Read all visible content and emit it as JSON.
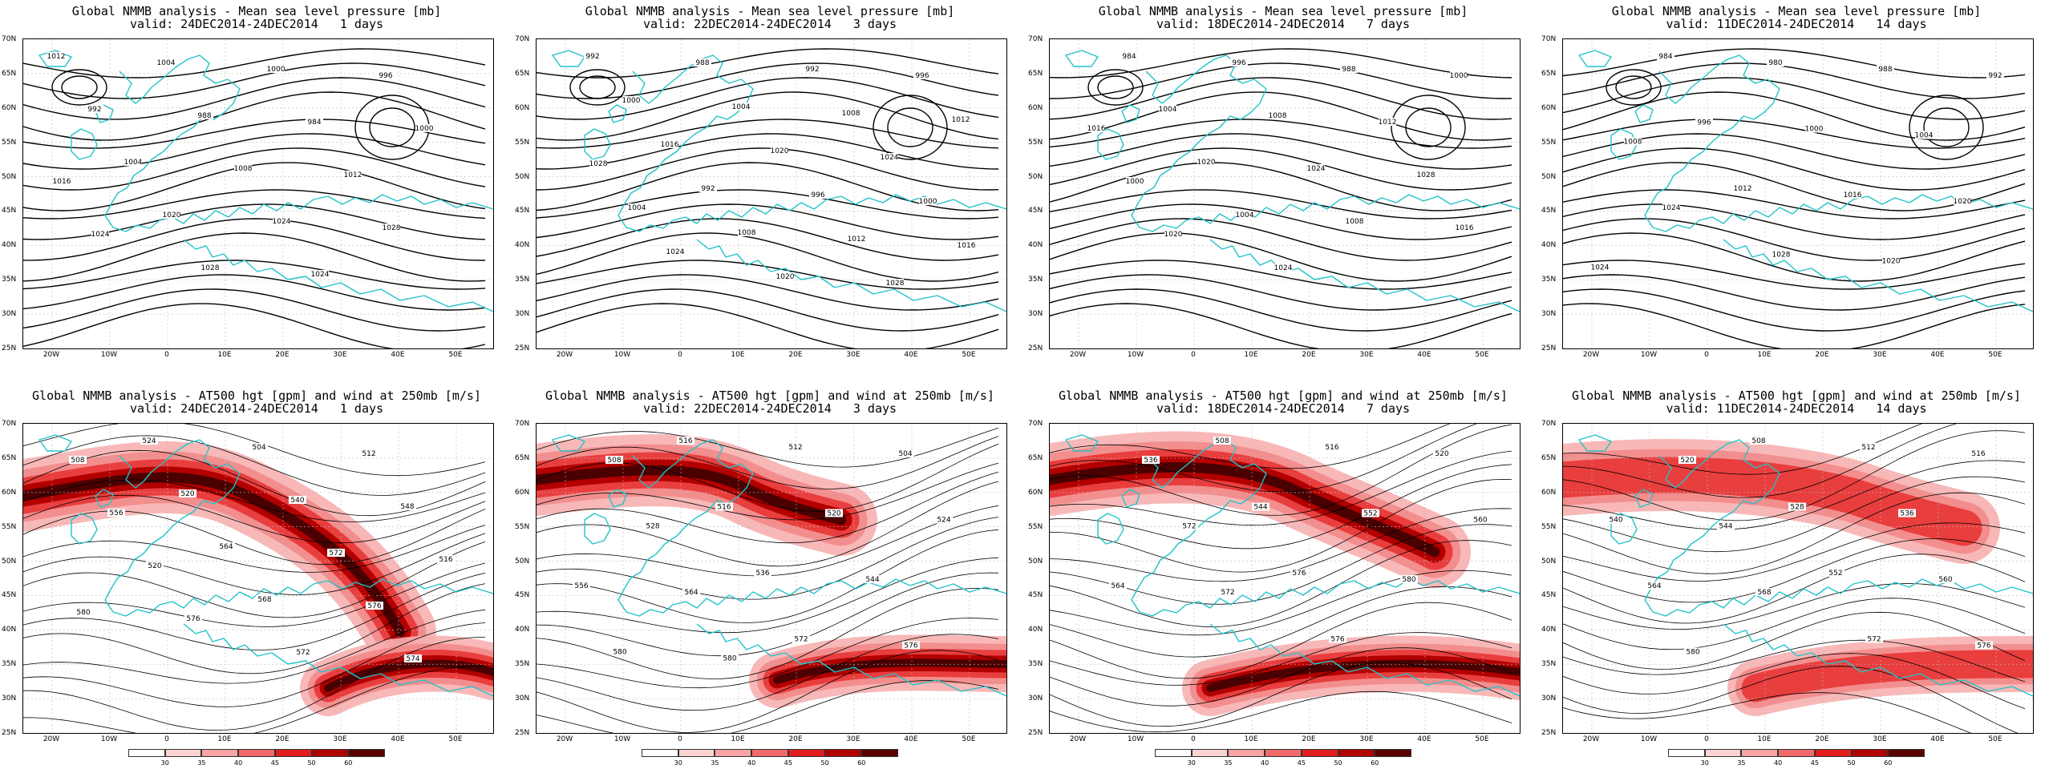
{
  "panels": [
    {
      "id": "p1",
      "row": 0,
      "col": 0,
      "type": "mslp",
      "title": "Global NMMB analysis - Mean sea level pressure [mb]",
      "subtitle": "valid: 24DEC2014-24DEC2014   1 days",
      "labels": [
        "1012",
        "1004",
        "1000",
        "996",
        "992",
        "988",
        "984",
        "1000",
        "1004",
        "1008",
        "1012",
        "1016",
        "1020",
        "1024",
        "1028",
        "1024",
        "1028",
        "1024"
      ]
    },
    {
      "id": "p2",
      "row": 0,
      "col": 1,
      "type": "mslp",
      "title": "Global NMMB analysis - Mean sea level pressure [mb]",
      "subtitle": "valid: 22DEC2014-24DEC2014   3 days",
      "labels": [
        "992",
        "988",
        "992",
        "996",
        "1000",
        "1004",
        "1008",
        "1012",
        "1016",
        "1020",
        "1024",
        "1028",
        "992",
        "996",
        "1000",
        "1004",
        "1008",
        "1012",
        "1016",
        "1024",
        "1020",
        "1028"
      ]
    },
    {
      "id": "p3",
      "row": 0,
      "col": 2,
      "type": "mslp",
      "title": "Global NMMB analysis - Mean sea level pressure [mb]",
      "subtitle": "valid: 18DEC2014-24DEC2014   7 days",
      "labels": [
        "984",
        "996",
        "988",
        "1000",
        "1004",
        "1008",
        "1012",
        "1016",
        "1020",
        "1024",
        "1028",
        "1000",
        "1004",
        "1008",
        "1016",
        "1020",
        "1024"
      ]
    },
    {
      "id": "p4",
      "row": 0,
      "col": 3,
      "type": "mslp",
      "title": "Global NMMB analysis - Mean sea level pressure [mb]",
      "subtitle": "valid: 11DEC2014-24DEC2014   14 days",
      "labels": [
        "984",
        "980",
        "988",
        "992",
        "996",
        "1000",
        "1004",
        "1008",
        "1012",
        "1016",
        "1020",
        "1024",
        "1028",
        "1020",
        "1024"
      ]
    },
    {
      "id": "p5",
      "row": 1,
      "col": 0,
      "type": "z500",
      "title": "Global NMMB analysis - AT500 hgt [gpm] and wind at 250mb [m/s]",
      "subtitle": "valid: 24DEC2014-24DEC2014   1 days",
      "labels": [
        "524",
        "504",
        "512",
        "508",
        "520",
        "540",
        "548",
        "556",
        "564",
        "572",
        "516",
        "520",
        "568",
        "576",
        "580",
        "576",
        "572",
        "574"
      ]
    },
    {
      "id": "p6",
      "row": 1,
      "col": 1,
      "type": "z500",
      "title": "Global NMMB analysis - AT500 hgt [gpm] and wind at 250mb [m/s]",
      "subtitle": "valid: 22DEC2014-24DEC2014   3 days",
      "labels": [
        "516",
        "512",
        "504",
        "508",
        "516",
        "520",
        "524",
        "528",
        "536",
        "544",
        "556",
        "564",
        "572",
        "576",
        "580",
        "580"
      ]
    },
    {
      "id": "p7",
      "row": 1,
      "col": 2,
      "type": "z500",
      "title": "Global NMMB analysis - AT500 hgt [gpm] and wind at 250mb [m/s]",
      "subtitle": "valid: 18DEC2014-24DEC2014   7 days",
      "labels": [
        "508",
        "516",
        "520",
        "536",
        "544",
        "552",
        "560",
        "572",
        "576",
        "580",
        "564",
        "572",
        "576"
      ]
    },
    {
      "id": "p8",
      "row": 1,
      "col": 3,
      "type": "z500",
      "title": "Global NMMB analysis - AT500 hgt [gpm] and wind at 250mb [m/s]",
      "subtitle": "valid: 11DEC2014-24DEC2014   14 days",
      "labels": [
        "508",
        "512",
        "516",
        "520",
        "528",
        "536",
        "540",
        "544",
        "552",
        "560",
        "564",
        "568",
        "572",
        "576",
        "580"
      ]
    }
  ],
  "axes": {
    "lat_labels": [
      "70N",
      "65N",
      "60N",
      "55N",
      "50N",
      "45N",
      "40N",
      "35N",
      "30N",
      "25N"
    ],
    "lon_labels": [
      "20W",
      "10W",
      "0",
      "10E",
      "20E",
      "30E",
      "40E",
      "50E"
    ]
  },
  "colorbar": {
    "labels": [
      "30",
      "35",
      "40",
      "45",
      "50",
      "60"
    ],
    "colors": [
      "#ffffff",
      "#fcd3d3",
      "#f7a4a4",
      "#f06a6a",
      "#e21d1d",
      "#b00000",
      "#5a0000"
    ]
  },
  "colors": {
    "coast": "#22c3c9",
    "contour": "#000000",
    "jet_light": "#f7b0b0",
    "jet_mid": "#e83a3a",
    "jet_strong": "#b20000",
    "jet_core": "#4a0000"
  }
}
